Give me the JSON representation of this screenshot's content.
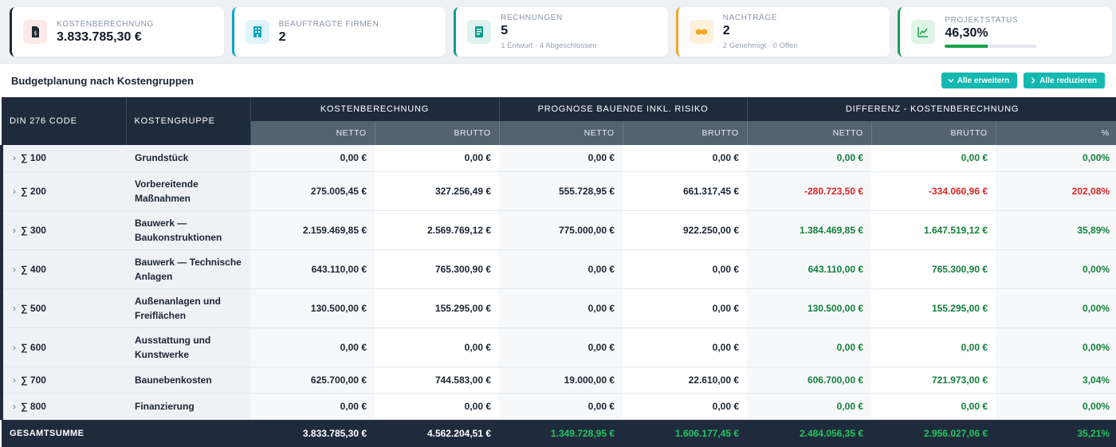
{
  "kpis": [
    {
      "label": "KOSTENBERECHNUNG",
      "value": "3.833.785,30 €",
      "icon": "document-dollar-icon",
      "accent": "#1f2937",
      "icon_bg": "#fde8e8",
      "icon_color": "#1f2937"
    },
    {
      "label": "BEAUFTRAGTE FIRMEN",
      "value": "2",
      "icon": "building-icon",
      "accent": "#0ea5c9",
      "icon_bg": "#e0f4fb",
      "icon_color": "#0ea5c9"
    },
    {
      "label": "RECHNUNGEN",
      "value": "5",
      "sub": "1 Entwurf · 4 Abgeschlossen",
      "icon": "invoice-icon",
      "accent": "#0f9d8c",
      "icon_bg": "#dcf3ef",
      "icon_color": "#0f9d8c"
    },
    {
      "label": "NACHTRÄGE",
      "value": "2",
      "sub": "2 Genehmigt · 0 Offen",
      "icon": "handshake-icon",
      "accent": "#f5a524",
      "icon_bg": "#fdf1dc",
      "icon_color": "#f5a524"
    },
    {
      "label": "PROJEKTSTATUS",
      "value": "46,30%",
      "icon": "chart-line-icon",
      "accent": "#16a34a",
      "icon_bg": "#dff5e6",
      "icon_color": "#16a34a",
      "progress": 0.463
    }
  ],
  "panel": {
    "title": "Budgetplanung nach Kostengruppen",
    "expand_all": "Alle erweitern",
    "collapse_all": "Alle reduzieren"
  },
  "table": {
    "col_code": "DIN 276 CODE",
    "col_group": "KOSTENGRUPPE",
    "group_kb": "KOSTENBERECHNUNG",
    "group_prognose": "PROGNOSE BAUENDE INKL. RISIKO",
    "group_diff": "DIFFERENZ - KOSTENBERECHNUNG",
    "netto": "NETTO",
    "brutto": "BRUTTO",
    "percent": "%",
    "rows": [
      {
        "code": "∑ 100",
        "name": "Grundstück",
        "kb_netto": "0,00 €",
        "kb_brutto": "0,00 €",
        "pr_netto": "0,00 €",
        "pr_brutto": "0,00 €",
        "diff_netto": "0,00 €",
        "diff_brutto": "0,00 €",
        "diff_pct": "0,00%",
        "status": "green"
      },
      {
        "code": "∑ 200",
        "name": "Vorbereitende Maßnahmen",
        "kb_netto": "275.005,45 €",
        "kb_brutto": "327.256,49 €",
        "pr_netto": "555.728,95 €",
        "pr_brutto": "661.317,45 €",
        "diff_netto": "-280.723,50 €",
        "diff_brutto": "-334.060,96 €",
        "diff_pct": "202,08%",
        "status": "red"
      },
      {
        "code": "∑ 300",
        "name": "Bauwerk — Baukonstruktionen",
        "kb_netto": "2.159.469,85 €",
        "kb_brutto": "2.569.769,12 €",
        "pr_netto": "775.000,00 €",
        "pr_brutto": "922.250,00 €",
        "diff_netto": "1.384.469,85 €",
        "diff_brutto": "1.647.519,12 €",
        "diff_pct": "35,89%",
        "status": "green"
      },
      {
        "code": "∑ 400",
        "name": "Bauwerk — Technische Anlagen",
        "kb_netto": "643.110,00 €",
        "kb_brutto": "765.300,90 €",
        "pr_netto": "0,00 €",
        "pr_brutto": "0,00 €",
        "diff_netto": "643.110,00 €",
        "diff_brutto": "765.300,90 €",
        "diff_pct": "0,00%",
        "status": "green"
      },
      {
        "code": "∑ 500",
        "name": "Außenanlagen und Freiflächen",
        "kb_netto": "130.500,00 €",
        "kb_brutto": "155.295,00 €",
        "pr_netto": "0,00 €",
        "pr_brutto": "0,00 €",
        "diff_netto": "130.500,00 €",
        "diff_brutto": "155.295,00 €",
        "diff_pct": "0,00%",
        "status": "green"
      },
      {
        "code": "∑ 600",
        "name": "Ausstattung und Kunstwerke",
        "kb_netto": "0,00 €",
        "kb_brutto": "0,00 €",
        "pr_netto": "0,00 €",
        "pr_brutto": "0,00 €",
        "diff_netto": "0,00 €",
        "diff_brutto": "0,00 €",
        "diff_pct": "0,00%",
        "status": "green"
      },
      {
        "code": "∑ 700",
        "name": "Baunebenkosten",
        "kb_netto": "625.700,00 €",
        "kb_brutto": "744.583,00 €",
        "pr_netto": "19.000,00 €",
        "pr_brutto": "22.610,00 €",
        "diff_netto": "606.700,00 €",
        "diff_brutto": "721.973,00 €",
        "diff_pct": "3,04%",
        "status": "green"
      },
      {
        "code": "∑ 800",
        "name": "Finanzierung",
        "kb_netto": "0,00 €",
        "kb_brutto": "0,00 €",
        "pr_netto": "0,00 €",
        "pr_brutto": "0,00 €",
        "diff_netto": "0,00 €",
        "diff_brutto": "0,00 €",
        "diff_pct": "0,00%",
        "status": "green"
      }
    ],
    "total": {
      "label": "GESAMTSUMME",
      "kb_netto": "3.833.785,30 €",
      "kb_brutto": "4.562.204,51 €",
      "pr_netto": "1.349.728,95 €",
      "pr_brutto": "1.606.177,45 €",
      "diff_netto": "2.484.056,35 €",
      "diff_brutto": "2.956.027,06 €",
      "diff_pct": "35,21%"
    }
  }
}
